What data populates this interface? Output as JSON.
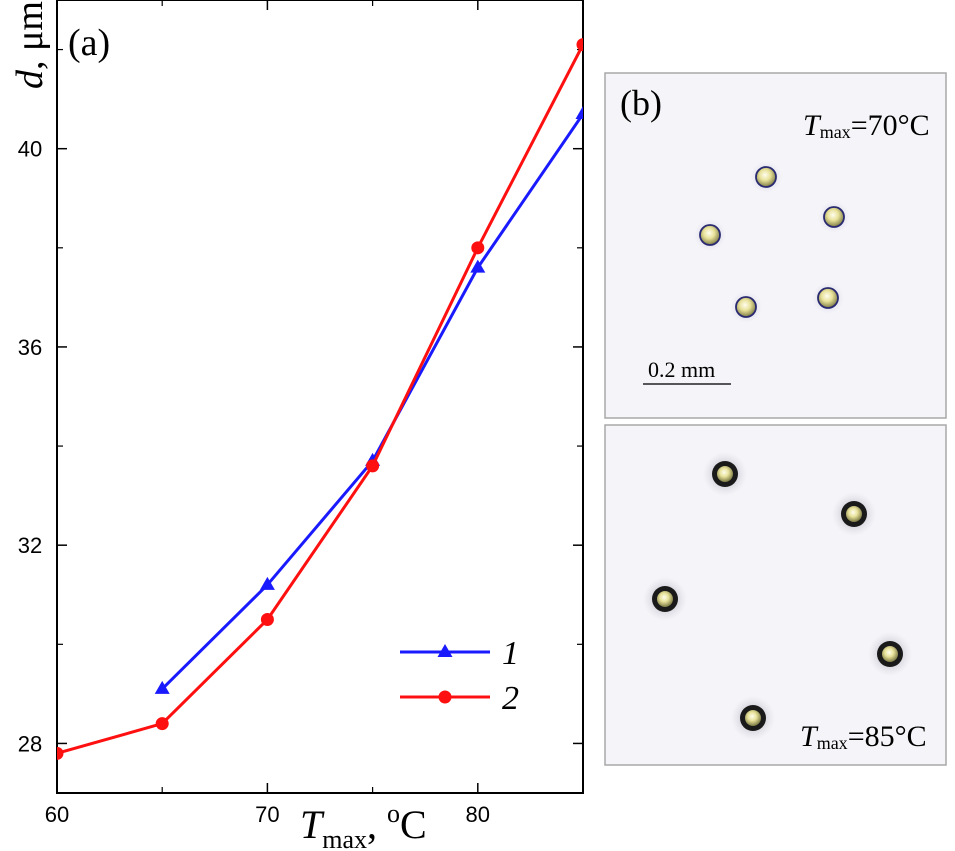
{
  "chart_data": {
    "type": "line",
    "panel_label": "(a)",
    "ylabel": {
      "symbol": "d",
      "unit": ", μm"
    },
    "xlabel": {
      "symbol": "T",
      "subscript": "max",
      "comma": ",",
      "unit_sup": "o",
      "unit": "C"
    },
    "xlim": [
      60,
      85
    ],
    "ylim": [
      27,
      43
    ],
    "xticks": [
      60,
      70,
      80
    ],
    "xtick_labels": [
      "60",
      "70",
      "80"
    ],
    "yticks": [
      28,
      32,
      36,
      40
    ],
    "ytick_labels": [
      "28",
      "32",
      "36",
      "40"
    ],
    "series": [
      {
        "name": "1",
        "color": "#1a1aff",
        "marker": "triangle",
        "x": [
          65,
          70,
          75,
          80,
          85
        ],
        "y": [
          29.1,
          31.2,
          33.7,
          37.6,
          40.7
        ]
      },
      {
        "name": "2",
        "color": "#ff1010",
        "marker": "circle",
        "x": [
          60,
          65,
          70,
          75,
          80,
          85
        ],
        "y": [
          27.8,
          28.4,
          30.5,
          33.6,
          38.0,
          42.1
        ]
      }
    ],
    "legend": {
      "placement": "bottom-right"
    }
  },
  "micrographs": {
    "panel_label": "(b)",
    "top": {
      "t_symbol": "T",
      "t_sub": "max",
      "t_value": "=70°C",
      "scale_bar": "0.2 mm"
    },
    "bottom": {
      "t_symbol": "T",
      "t_sub": "max",
      "t_value": "=85°C"
    }
  },
  "colors": {
    "frame": "#000000",
    "photo_bg": "#f5f4f8",
    "photo_border": "#a8a8a8"
  }
}
